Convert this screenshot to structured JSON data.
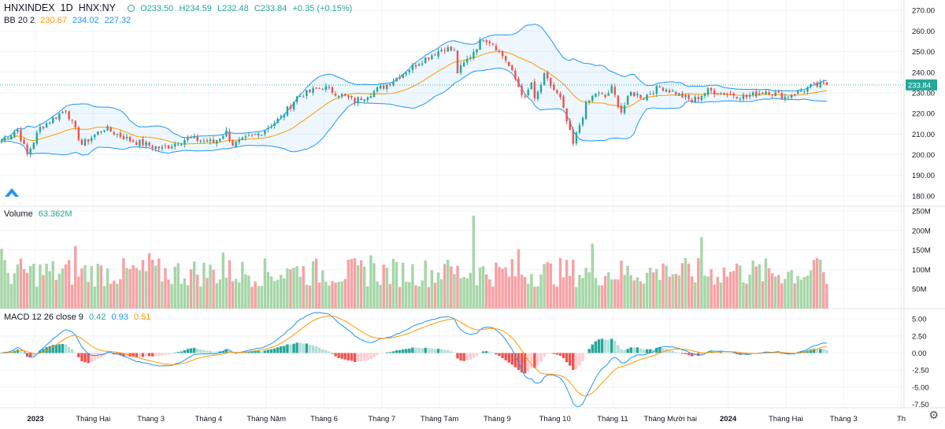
{
  "legend": {
    "symbol": "HNXINDEX",
    "interval": "1D",
    "exchange": "HNX:NY",
    "open": "O233.50",
    "high": "H234.59",
    "low": "L232.48",
    "close": "C233.84",
    "change": "+0.35 (+0.15%)",
    "bb_label": "BB 20 2",
    "bb_basis": "230.67",
    "bb_upper": "234.02",
    "bb_lower": "227.32",
    "volume_label": "Volume",
    "volume_value": "63.362M",
    "macd_label": "MACD 12 26 close 9",
    "macd_hist": "0.42",
    "macd_line": "0.93",
    "macd_signal": "0.51"
  },
  "colors": {
    "up": "#26a69a",
    "down": "#ef5350",
    "bb_band": "#2196f3",
    "bb_basis": "#ff9800",
    "macd_line": "#2196f3",
    "signal_line": "#ff9800"
  },
  "icons": {
    "settings": "gear-icon",
    "logo": "tradingview-logo-icon"
  },
  "chart_data": {
    "type": "candlestick",
    "symbol": "HNXINDEX",
    "last_price_label": "233.84",
    "price_axis": {
      "ticks": [
        "270.00",
        "260.00",
        "250.00",
        "240.00",
        "230.00",
        "220.00",
        "210.00",
        "200.00",
        "190.00",
        "180.00"
      ],
      "range": [
        175,
        272
      ]
    },
    "volume_axis": {
      "ticks": [
        "250M",
        "200M",
        "150M",
        "100M",
        "50M"
      ],
      "range": [
        0,
        250
      ]
    },
    "macd_axis": {
      "ticks": [
        "5.00",
        "2.50",
        "0.00",
        "-2.50",
        "-5.00",
        "-7.50"
      ],
      "range": [
        -8,
        6.5
      ]
    },
    "time_axis": {
      "labels": [
        "2023",
        "Tháng Hai",
        "Tháng 3",
        "Tháng 4",
        "Tháng Năm",
        "Tháng 6",
        "Tháng 7",
        "Tháng Tám",
        "Tháng 9",
        "Tháng 10",
        "Tháng 11",
        "Tháng Mười hai",
        "2024",
        "Tháng Hai",
        "Tháng 3",
        "Th"
      ],
      "bold": [
        true,
        false,
        false,
        false,
        false,
        false,
        false,
        false,
        false,
        false,
        false,
        false,
        true,
        false,
        false,
        false
      ]
    },
    "close_path": {
      "anchor_bars": [
        0,
        5,
        8,
        12,
        20,
        25,
        32,
        40,
        50,
        58,
        66,
        70,
        72,
        80,
        87,
        92,
        100,
        110,
        120,
        130,
        138,
        141,
        142,
        146,
        150,
        153,
        157,
        163,
        165,
        166,
        169,
        174,
        178,
        182,
        185,
        188,
        190,
        193,
        196,
        200,
        205,
        210,
        215,
        220,
        225,
        232,
        238,
        244,
        252,
        256,
        257
      ],
      "close": [
        207,
        212,
        200,
        213,
        222,
        205,
        213,
        207,
        203,
        208,
        206,
        211,
        205,
        210,
        218,
        228,
        233,
        226,
        234,
        245,
        252,
        250,
        240,
        248,
        257,
        254,
        246,
        227,
        235,
        226,
        238,
        227,
        205,
        224,
        230,
        228,
        232,
        221,
        230,
        228,
        233,
        230,
        226,
        231,
        230,
        228,
        231,
        228,
        233,
        234,
        233.84
      ]
    }
  }
}
